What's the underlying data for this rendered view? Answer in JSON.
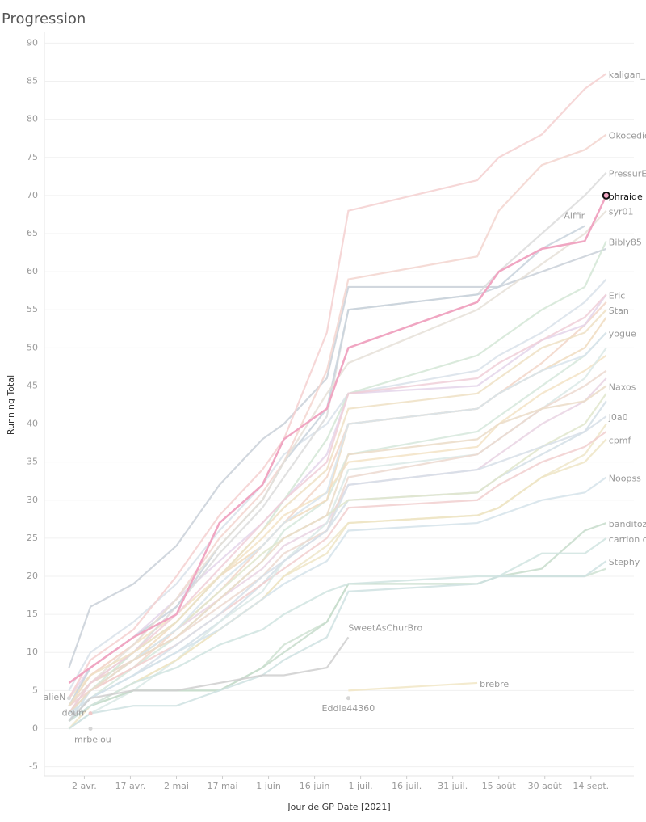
{
  "chart_data": {
    "type": "line",
    "title": "Progression",
    "y_label": "Running Total",
    "x_label": "Jour de GP Date [2021]",
    "x": [
      "2021-03-28",
      "2021-04-04",
      "2021-04-18",
      "2021-05-02",
      "2021-05-16",
      "2021-05-30",
      "2021-06-06",
      "2021-06-20",
      "2021-06-27",
      "2021-08-08",
      "2021-08-15",
      "2021-08-29",
      "2021-09-12",
      "2021-09-19"
    ],
    "xlim": [
      "2021-03-20",
      "2021-09-28"
    ],
    "xticks": [
      {
        "value": "2021-04-02",
        "label": "2 avr."
      },
      {
        "value": "2021-04-17",
        "label": "17 avr."
      },
      {
        "value": "2021-05-02",
        "label": "2 mai"
      },
      {
        "value": "2021-05-17",
        "label": "17 mai"
      },
      {
        "value": "2021-06-01",
        "label": "1 juin"
      },
      {
        "value": "2021-06-16",
        "label": "16 juin"
      },
      {
        "value": "2021-07-01",
        "label": "1 juil."
      },
      {
        "value": "2021-07-16",
        "label": "16 juil."
      },
      {
        "value": "2021-07-31",
        "label": "31 juil."
      },
      {
        "value": "2021-08-15",
        "label": "15 août"
      },
      {
        "value": "2021-08-30",
        "label": "30 août"
      },
      {
        "value": "2021-09-14",
        "label": "14 sept."
      }
    ],
    "ylim": [
      -6,
      91
    ],
    "yticks": [
      -5,
      0,
      5,
      10,
      15,
      20,
      25,
      30,
      35,
      40,
      45,
      50,
      55,
      60,
      65,
      70,
      75,
      80,
      85,
      90
    ],
    "grid": true,
    "series": [
      {
        "color": "#d9e2ea",
        "values": [
          5,
          10,
          14,
          19,
          26,
          32,
          36,
          40,
          44,
          47,
          49,
          52,
          56,
          59
        ]
      },
      {
        "color": "#f2d6c8",
        "values": [
          2,
          5,
          8,
          13,
          18,
          24,
          27,
          33,
          40,
          42,
          44,
          48,
          53,
          56
        ]
      },
      {
        "color": "#d6e8dc",
        "values": [
          1,
          4,
          8,
          12,
          17,
          22,
          26,
          30,
          36,
          39,
          41,
          45,
          49,
          52
        ]
      },
      {
        "color": "#f3e3c5",
        "values": [
          4,
          7,
          11,
          15,
          20,
          25,
          28,
          31,
          35,
          37,
          40,
          44,
          47,
          49
        ]
      },
      {
        "color": "#e9d3e3",
        "values": [
          3,
          6,
          9,
          13,
          17,
          21,
          24,
          27,
          32,
          34,
          36,
          40,
          43,
          46
        ]
      },
      {
        "color": "#d3dfe6",
        "values": [
          2,
          4,
          7,
          10,
          14,
          19,
          22,
          26,
          30,
          31,
          33,
          36,
          39,
          43
        ]
      },
      {
        "color": "#efe6c9",
        "values": [
          1,
          3,
          6,
          9,
          13,
          17,
          20,
          24,
          27,
          28,
          29,
          33,
          36,
          40
        ]
      },
      {
        "color": "#f1cfcf",
        "values": [
          3,
          5,
          8,
          11,
          15,
          19,
          21,
          25,
          29,
          30,
          32,
          35,
          37,
          39
        ]
      },
      {
        "color": "#dbe9e6",
        "values": [
          0,
          2,
          5,
          9,
          14,
          18,
          22,
          27,
          34,
          36,
          38,
          42,
          46,
          50
        ]
      },
      {
        "color": "#c9d0d8",
        "values": [
          8,
          16,
          19,
          24,
          32,
          38,
          40,
          46,
          58,
          58,
          58,
          60,
          62,
          63
        ]
      },
      {
        "color": "#f0dcc0",
        "values": [
          2,
          6,
          9,
          14,
          20,
          24,
          27,
          30,
          40,
          42,
          44,
          47,
          50,
          54
        ]
      },
      {
        "color": "#e4d5ea",
        "values": [
          4,
          8,
          12,
          17,
          22,
          27,
          30,
          36,
          44,
          45,
          47,
          51,
          53,
          57
        ]
      },
      {
        "color": "#cfe2d2",
        "values": [
          1,
          3,
          5,
          5,
          5,
          8,
          11,
          14,
          19,
          19,
          20,
          20,
          20,
          21
        ]
      },
      {
        "color": "#ecd9d0",
        "values": [
          3,
          6,
          9,
          12,
          16,
          20,
          23,
          26,
          33,
          36,
          38,
          42,
          45,
          47
        ]
      },
      {
        "color": "#e0e6cc",
        "values": [
          2,
          5,
          9,
          13,
          18,
          23,
          25,
          28,
          30,
          31,
          33,
          37,
          40,
          44
        ]
      },
      {
        "name": "kaligan_",
        "color": "#f4d0d0",
        "values": [
          4,
          9,
          13,
          20,
          28,
          34,
          38,
          52,
          68,
          72,
          75,
          78,
          84,
          86
        ]
      },
      {
        "name": "Okocedion",
        "color": "#f3d5cf",
        "values": [
          3,
          7,
          11,
          17,
          25,
          31,
          35,
          47,
          59,
          62,
          68,
          74,
          76,
          78
        ]
      },
      {
        "name": "PressurE",
        "color": "#dcdcdc",
        "values": [
          2,
          6,
          10,
          16,
          23,
          29,
          33,
          41,
          55,
          57,
          60,
          65,
          70,
          73
        ]
      },
      {
        "name": "Alffir",
        "color": "#c8d2dc",
        "values": [
          3,
          8,
          12,
          16,
          24,
          30,
          35,
          42,
          55,
          57,
          58,
          63,
          66,
          null
        ]
      },
      {
        "name": "syr01",
        "color": "#e6e0d8",
        "values": [
          2,
          6,
          11,
          17,
          24,
          30,
          35,
          44,
          48,
          55,
          57,
          61,
          65,
          68
        ]
      },
      {
        "name": "Bibly85",
        "color": "#d3e6d6",
        "values": [
          1,
          5,
          10,
          14,
          20,
          26,
          30,
          38,
          44,
          49,
          51,
          55,
          58,
          64
        ]
      },
      {
        "name": "Eric",
        "color": "#f0cfd8",
        "values": [
          2,
          6,
          10,
          15,
          21,
          27,
          30,
          35,
          44,
          46,
          48,
          51,
          54,
          57
        ]
      },
      {
        "name": "Stan",
        "color": "#efe0c4",
        "values": [
          3,
          7,
          10,
          14,
          20,
          26,
          29,
          34,
          42,
          44,
          46,
          50,
          52,
          55
        ]
      },
      {
        "name": "yogue",
        "color": "#d8e4ec",
        "values": [
          1,
          5,
          9,
          13,
          19,
          24,
          27,
          31,
          40,
          42,
          44,
          47,
          49,
          52
        ]
      },
      {
        "name": "Naxos",
        "color": "#ebdcc8",
        "values": [
          2,
          5,
          9,
          12,
          17,
          22,
          25,
          28,
          36,
          38,
          40,
          42,
          43,
          45
        ]
      },
      {
        "name": "j0a0",
        "color": "#d7dfe8",
        "values": [
          1,
          4,
          7,
          11,
          15,
          20,
          22,
          26,
          32,
          34,
          35,
          37,
          39,
          41
        ]
      },
      {
        "name": "cpmf",
        "color": "#eee5c6",
        "values": [
          0,
          3,
          6,
          9,
          13,
          17,
          20,
          23,
          27,
          28,
          29,
          33,
          35,
          38
        ]
      },
      {
        "name": "Noopss",
        "color": "#d5e3ea",
        "values": [
          2,
          4,
          7,
          10,
          13,
          17,
          19,
          22,
          26,
          27,
          28,
          30,
          31,
          33
        ]
      },
      {
        "name": "banditoz",
        "color": "#c7dccb",
        "values": [
          1,
          3,
          5,
          5,
          5,
          8,
          10,
          14,
          19,
          19,
          20,
          21,
          26,
          27
        ]
      },
      {
        "name": "carrion crow",
        "color": "#d0e4e0",
        "values": [
          1,
          3,
          6,
          8,
          11,
          13,
          15,
          18,
          19,
          20,
          20,
          23,
          23,
          25
        ]
      },
      {
        "name": "Stephy",
        "color": "#cfe2e2",
        "values": [
          0,
          2,
          3,
          3,
          5,
          7,
          9,
          12,
          18,
          19,
          20,
          20,
          20,
          22
        ]
      },
      {
        "name": "SweetAsChurBro",
        "color": "#cfcfcf",
        "values": [
          1,
          4,
          5,
          5,
          6,
          7,
          7,
          8,
          12,
          null,
          null,
          null,
          null,
          null
        ]
      },
      {
        "name": "brebre",
        "color": "#f1e6c6",
        "values": [
          null,
          null,
          null,
          null,
          null,
          null,
          null,
          null,
          5,
          6,
          null,
          null,
          null,
          null
        ]
      },
      {
        "name": "Eddie44360",
        "color": "#d6d6d6",
        "values": [
          null,
          null,
          null,
          null,
          null,
          null,
          null,
          null,
          4,
          null,
          null,
          null,
          null,
          null
        ]
      },
      {
        "name": "alieN",
        "color": "#dcdcdc",
        "values": [
          4,
          null,
          null,
          null,
          null,
          null,
          null,
          null,
          null,
          null,
          null,
          null,
          null,
          null
        ]
      },
      {
        "name": "doum",
        "color": "#f0c8c8",
        "values": [
          null,
          2,
          null,
          null,
          null,
          null,
          null,
          null,
          null,
          null,
          null,
          null,
          null,
          null
        ]
      },
      {
        "name": "mrbelou",
        "color": "#d6d6d6",
        "values": [
          null,
          0,
          null,
          null,
          null,
          null,
          null,
          null,
          null,
          null,
          null,
          null,
          null,
          null
        ]
      },
      {
        "name": "phraide",
        "color": "#f0a6c2",
        "values": [
          6,
          8,
          12,
          15,
          27,
          32,
          38,
          42,
          50,
          56,
          60,
          63,
          64,
          70
        ]
      }
    ]
  }
}
